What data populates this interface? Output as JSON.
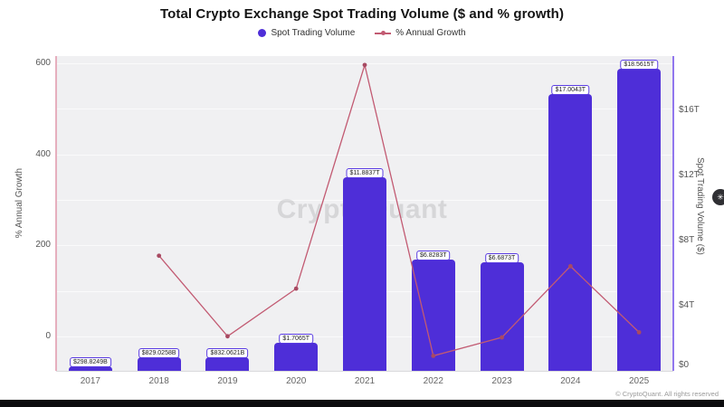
{
  "header": {
    "title": "Total Crypto Exchange Spot Trading Volume ($ and % growth)"
  },
  "legend": {
    "items": [
      {
        "label": "Spot Trading Volume",
        "color": "#4e2ed8",
        "marker": "circle"
      },
      {
        "label": "% Annual Growth",
        "color": "#c25a72",
        "marker": "line-dot"
      }
    ]
  },
  "watermark": "CryptoQuant",
  "footer": {
    "copyright": "© CryptoQuant. All rights reserved"
  },
  "floating_button": {
    "glyph": "✳"
  },
  "chart_data": {
    "type": "bar",
    "title": "Total Crypto Exchange Spot Trading Volume ($ and % growth)",
    "categories": [
      "2017",
      "2018",
      "2019",
      "2020",
      "2021",
      "2022",
      "2023",
      "2024",
      "2025"
    ],
    "series": [
      {
        "name": "Spot Trading Volume",
        "type": "bar",
        "axis": "right",
        "color": "#4e2ed8",
        "values_trillions": [
          0.29882,
          0.82903,
          0.83206,
          1.7065,
          11.8837,
          6.8283,
          6.6873,
          17.0043,
          18.5615
        ],
        "labels": [
          "$298.8249B",
          "$829.0258B",
          "$832.0621B",
          "$1.7065T",
          "$11.8837T",
          "$6.8283T",
          "$6.6873T",
          "$17.0043T",
          "$18.5615T"
        ]
      },
      {
        "name": "% Annual Growth",
        "type": "line",
        "axis": "left",
        "color": "#c25a72",
        "marker_color": "#a84a62",
        "values_percent": [
          null,
          177.4,
          0.4,
          105.1,
          596.4,
          -42.5,
          -2.1,
          154.3,
          9.2
        ]
      }
    ],
    "left_axis": {
      "label": "% Annual Growth",
      "min": -75.5,
      "max": 616,
      "ticks": [
        {
          "label": "600",
          "value": 600
        },
        {
          "label": "400",
          "value": 400
        },
        {
          "label": "200",
          "value": 200
        },
        {
          "label": "0",
          "value": 0
        }
      ],
      "grid_values": [
        0,
        100,
        200,
        300,
        400,
        500,
        600
      ],
      "spine_color": "#e6afbe"
    },
    "right_axis": {
      "label": "Spot Trading Volume ($)",
      "min": 0,
      "max": 19.33,
      "ticks": [
        {
          "label": "$16T",
          "value": 16
        },
        {
          "label": "$12T",
          "value": 12
        },
        {
          "label": "$8T",
          "value": 8
        },
        {
          "label": "$4T",
          "value": 4
        },
        {
          "label": "$0",
          "value": 0
        }
      ],
      "spine_color": "#9177ee"
    },
    "grid": true,
    "legend_position": "top",
    "plot_background": "#f0f0f2"
  }
}
